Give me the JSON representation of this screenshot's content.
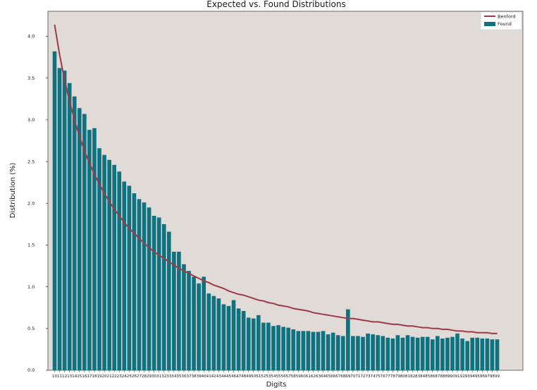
{
  "chart_data": {
    "type": "bar",
    "title": "Expected vs. Found Distributions",
    "xlabel": "Digits",
    "ylabel": "Distribution (%)",
    "ylim": [
      0,
      4.3
    ],
    "yticks": [
      "0.0",
      "0.5",
      "1.0",
      "1.5",
      "2.0",
      "2.5",
      "3.0",
      "3.5",
      "4.0"
    ],
    "grid": false,
    "legend_position": "top-right",
    "background_color": "#e0dbd7",
    "categories": [
      "10",
      "11",
      "12",
      "13",
      "14",
      "15",
      "16",
      "17",
      "18",
      "19",
      "20",
      "21",
      "22",
      "23",
      "24",
      "25",
      "26",
      "27",
      "28",
      "29",
      "30",
      "31",
      "32",
      "33",
      "34",
      "35",
      "36",
      "37",
      "38",
      "39",
      "40",
      "41",
      "42",
      "43",
      "44",
      "45",
      "46",
      "47",
      "48",
      "49",
      "50",
      "51",
      "52",
      "53",
      "54",
      "55",
      "56",
      "57",
      "58",
      "59",
      "60",
      "61",
      "62",
      "63",
      "64",
      "65",
      "66",
      "67",
      "68",
      "69",
      "70",
      "71",
      "72",
      "73",
      "74",
      "75",
      "76",
      "77",
      "78",
      "79",
      "80",
      "81",
      "82",
      "83",
      "84",
      "85",
      "86",
      "87",
      "88",
      "89",
      "90",
      "91",
      "92",
      "93",
      "94",
      "95",
      "96",
      "97",
      "98",
      "99"
    ],
    "series": [
      {
        "name": "Benford",
        "kind": "line",
        "color": "#9e3a48",
        "values": [
          4.14,
          3.78,
          3.48,
          3.22,
          3.0,
          2.8,
          2.63,
          2.48,
          2.35,
          2.23,
          2.12,
          2.02,
          1.93,
          1.85,
          1.77,
          1.7,
          1.64,
          1.58,
          1.52,
          1.47,
          1.42,
          1.38,
          1.34,
          1.3,
          1.26,
          1.22,
          1.19,
          1.16,
          1.13,
          1.1,
          1.07,
          1.05,
          1.02,
          1.0,
          0.98,
          0.95,
          0.93,
          0.91,
          0.9,
          0.88,
          0.86,
          0.84,
          0.83,
          0.81,
          0.8,
          0.78,
          0.77,
          0.76,
          0.74,
          0.73,
          0.72,
          0.71,
          0.69,
          0.68,
          0.67,
          0.66,
          0.65,
          0.64,
          0.63,
          0.62,
          0.62,
          0.61,
          0.6,
          0.59,
          0.58,
          0.58,
          0.57,
          0.56,
          0.55,
          0.55,
          0.54,
          0.53,
          0.53,
          0.52,
          0.51,
          0.51,
          0.5,
          0.5,
          0.49,
          0.49,
          0.48,
          0.47,
          0.47,
          0.46,
          0.46,
          0.45,
          0.45,
          0.45,
          0.44,
          0.44
        ]
      },
      {
        "name": "Found",
        "kind": "bar",
        "color": "#0e7280",
        "values": [
          3.82,
          3.62,
          3.59,
          3.44,
          3.28,
          3.14,
          3.07,
          2.88,
          2.9,
          2.66,
          2.58,
          2.52,
          2.46,
          2.38,
          2.26,
          2.21,
          2.12,
          2.05,
          2.01,
          1.95,
          1.85,
          1.83,
          1.75,
          1.66,
          1.42,
          1.42,
          1.27,
          1.19,
          1.12,
          1.04,
          1.12,
          0.92,
          0.89,
          0.86,
          0.79,
          0.77,
          0.84,
          0.74,
          0.71,
          0.63,
          0.62,
          0.66,
          0.57,
          0.57,
          0.53,
          0.54,
          0.52,
          0.51,
          0.49,
          0.47,
          0.47,
          0.47,
          0.46,
          0.46,
          0.47,
          0.43,
          0.45,
          0.42,
          0.41,
          0.73,
          0.41,
          0.41,
          0.4,
          0.44,
          0.43,
          0.42,
          0.41,
          0.39,
          0.38,
          0.42,
          0.39,
          0.42,
          0.4,
          0.39,
          0.4,
          0.4,
          0.37,
          0.41,
          0.38,
          0.39,
          0.4,
          0.44,
          0.38,
          0.35,
          0.39,
          0.39,
          0.38,
          0.38,
          0.37,
          0.37
        ]
      }
    ]
  }
}
